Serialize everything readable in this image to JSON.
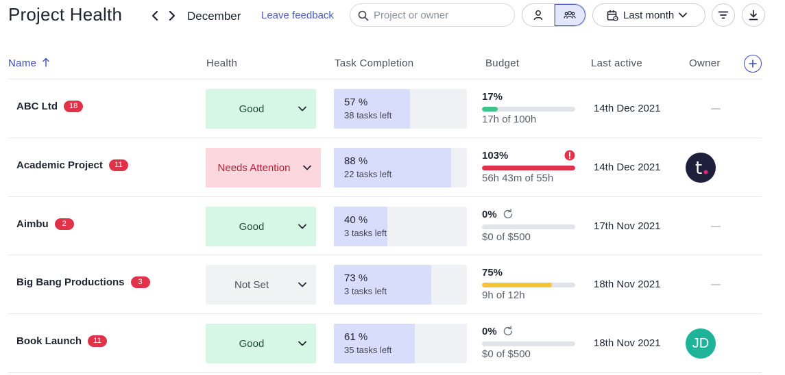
{
  "header": {
    "title": "Project Health",
    "month": "December",
    "feedback_label": "Leave feedback",
    "search": {
      "placeholder": "Project or owner",
      "value": ""
    },
    "period_label": "Last month",
    "icons": {
      "prev": "chevron-left-icon",
      "next": "chevron-right-icon",
      "search": "search-icon",
      "single_user": "user-icon",
      "team": "users-icon",
      "calendar": "calendar-icon",
      "period_chevron": "chevron-down-icon",
      "filter": "filter-icon",
      "download": "download-icon"
    }
  },
  "columns": {
    "name": "Name",
    "name_sort_icon": "arrow-up-icon",
    "health": "Health",
    "task_completion": "Task Completion",
    "budget": "Budget",
    "last_active": "Last active",
    "owner": "Owner",
    "add_icon": "plus-icon"
  },
  "colors": {
    "accent": "#4a5bc4",
    "badge_red": "#e0334a",
    "health_good_bg": "#d6f7e6",
    "health_attention_bg": "#fcd8de",
    "health_notset_bg": "#f1f2f4",
    "task_fill": "#d8ddfb",
    "budget_green": "#3ec48a",
    "budget_red": "#e0334a",
    "budget_yellow": "#f5c242"
  },
  "rows": [
    {
      "name": "ABC Ltd",
      "count": "18",
      "health": "Good",
      "task_percent": "57 %",
      "task_fraction": 0.57,
      "tasks_left": "38 tasks left",
      "budget_percent": "17%",
      "budget_fraction": 0.17,
      "budget_color": "#3ec48a",
      "budget_detail": "17h of 100h",
      "last_active": "14th Dec 2021",
      "owner": ""
    },
    {
      "name": "Academic Project",
      "count": "11",
      "health": "Needs Attention",
      "task_percent": "88 %",
      "task_fraction": 0.88,
      "tasks_left": "22 tasks left",
      "budget_percent": "103%",
      "budget_fraction": 1.0,
      "budget_color": "#e0334a",
      "budget_alert_icon": "alert-icon",
      "budget_detail": "56h 43m of 55h",
      "last_active": "14th Dec 2021",
      "owner_avatar_letter": "t"
    },
    {
      "name": "Aimbu",
      "count": "2",
      "health": "Good",
      "task_percent": "40 %",
      "task_fraction": 0.4,
      "tasks_left": "3 tasks left",
      "budget_percent": "0%",
      "budget_fraction": 0,
      "budget_refresh_icon": "refresh-icon",
      "budget_detail": "$0 of $500",
      "last_active": "17th Nov 2021",
      "owner": ""
    },
    {
      "name": "Big Bang Productions",
      "count": "3",
      "health": "Not Set",
      "task_percent": "73 %",
      "task_fraction": 0.73,
      "tasks_left": "3 tasks left",
      "budget_percent": "75%",
      "budget_fraction": 0.75,
      "budget_color": "#f5c242",
      "budget_detail": "9h of 12h",
      "last_active": "18th Nov 2021",
      "owner": ""
    },
    {
      "name": "Book Launch",
      "count": "11",
      "health": "Good",
      "task_percent": "61 %",
      "task_fraction": 0.61,
      "tasks_left": "35 tasks left",
      "budget_percent": "0%",
      "budget_fraction": 0,
      "budget_refresh_icon": "refresh-icon",
      "budget_detail": "$0 of $500",
      "last_active": "18th Nov 2021",
      "owner_avatar_initials": "JD"
    }
  ]
}
